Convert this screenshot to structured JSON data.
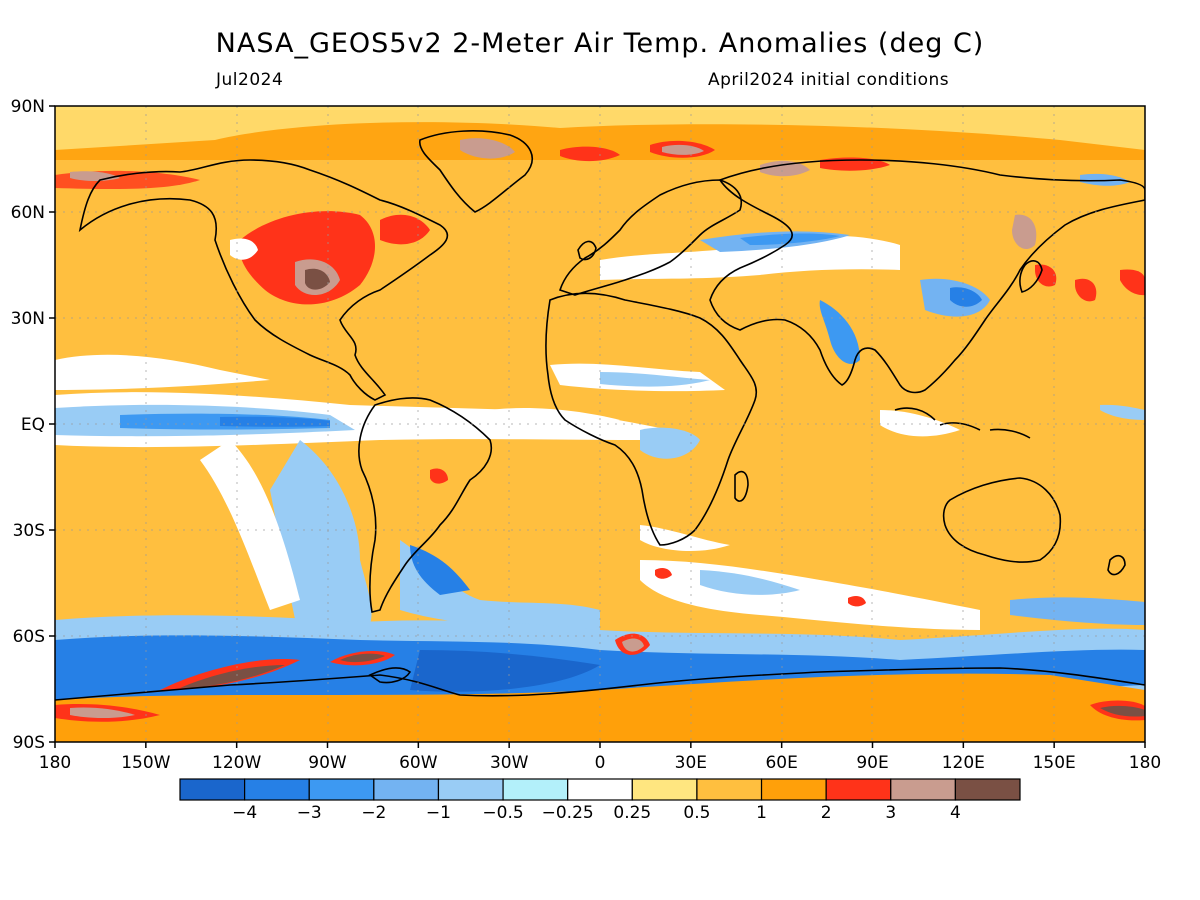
{
  "header": {
    "title": "NASA_GEOS5v2 2-Meter Air Temp. Anomalies (deg C)",
    "period": "Jul2024",
    "init": "April2024 initial conditions"
  },
  "axes": {
    "lat_ticks": [
      "90N",
      "60N",
      "30N",
      "EQ",
      "30S",
      "60S",
      "90S"
    ],
    "lon_ticks": [
      "180",
      "150W",
      "120W",
      "90W",
      "60W",
      "30W",
      "0",
      "30E",
      "60E",
      "90E",
      "120E",
      "150E",
      "180"
    ]
  },
  "colorbar": {
    "colors": [
      "#1a66cc",
      "#2680e6",
      "#3d99f2",
      "#73b3f2",
      "#99ccf5",
      "#b3f0fa",
      "#ffffff",
      "#ffe680",
      "#ffbf3f",
      "#ffa00a",
      "#ff3319",
      "#c99c8f",
      "#7a5044"
    ],
    "labels": [
      "-4",
      "-3",
      "-2",
      "-1",
      "-0.5",
      "-0.25",
      "0.25",
      "0.5",
      "1",
      "2",
      "3",
      "4"
    ]
  },
  "palette": {
    "base": "#ffbf3f",
    "warm2": "#ffa00a",
    "hot": "#ff3319",
    "hotter": "#c99c8f",
    "hottest": "#7a5044",
    "light": "#ffe680",
    "neutral": "#ffffff",
    "cool1": "#b3f0fa",
    "cool2": "#99ccf5",
    "cool3": "#73b3f2",
    "cool4": "#3d99f2",
    "cool5": "#2680e6",
    "cool6": "#1a66cc",
    "coast": "#000000"
  }
}
